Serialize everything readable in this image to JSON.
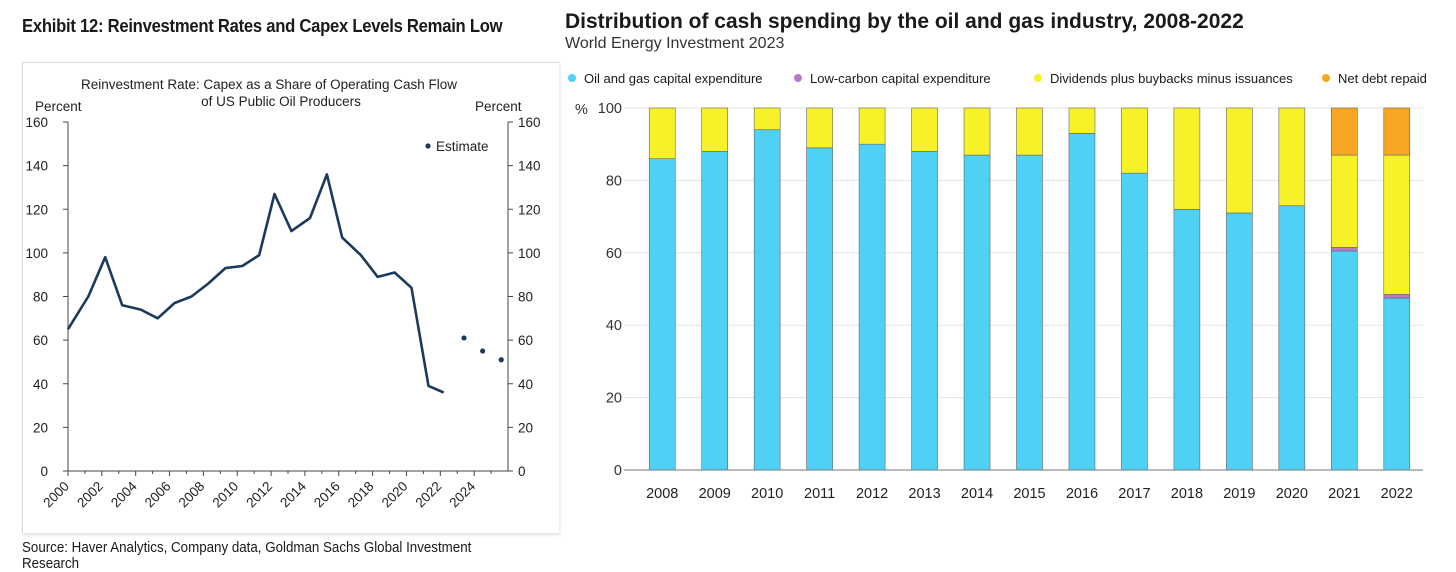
{
  "left": {
    "exhibit_title": "Exhibit 12: Reinvestment Rates and Capex Levels Remain Low",
    "source": "Source: Haver Analytics, Company data, Goldman Sachs Global Investment Research"
  },
  "right": {
    "title": "Distribution of cash spending by the oil and gas industry, 2008-2022",
    "subtitle": "World Energy Investment 2023"
  },
  "colors": {
    "line": "#1b3a5c",
    "capex": "#4fd0f5",
    "low_carbon": "#b57bc7",
    "dividends": "#f7f12a",
    "net_debt": "#f6a623"
  },
  "chart_data": [
    {
      "type": "line",
      "title": "Reinvestment Rate: Capex as a Share of Operating Cash Flow",
      "subtitle": "of US Public Oil Producers",
      "ylabel_left": "Percent",
      "ylabel_right": "Percent",
      "ylim": [
        0,
        160
      ],
      "yticks": [
        0,
        20,
        40,
        60,
        80,
        100,
        120,
        140,
        160
      ],
      "xlim": [
        2000,
        2026
      ],
      "xticks": [
        "2000",
        "2002",
        "2004",
        "2006",
        "2008",
        "2010",
        "2012",
        "2014",
        "2016",
        "2018",
        "2020",
        "2022",
        "2024"
      ],
      "grid": false,
      "legend_position": "top-right",
      "series": [
        {
          "name": "",
          "style": "line",
          "x": [
            2000,
            2001.2,
            2002.2,
            2003.2,
            2004.3,
            2005.3,
            2006.3,
            2007.3,
            2008.3,
            2009.3,
            2010.3,
            2011.3,
            2012.2,
            2013.2,
            2014.3,
            2015.3,
            2016.2,
            2017.3,
            2018.3,
            2019.3,
            2020.3,
            2021.3,
            2022.2
          ],
          "y": [
            65,
            80,
            98,
            76,
            74,
            70,
            77,
            80,
            86,
            93,
            94,
            99,
            127,
            110,
            116,
            136,
            107,
            99,
            89,
            91,
            84,
            39,
            36
          ]
        },
        {
          "name": "Estimate",
          "style": "dots",
          "x": [
            2023.4,
            2024.5,
            2025.6
          ],
          "y": [
            61,
            55,
            51
          ]
        }
      ]
    },
    {
      "type": "bar",
      "stacked": true,
      "ylabel": "%",
      "ylim": [
        0,
        100
      ],
      "yticks": [
        0,
        20,
        40,
        60,
        80,
        100
      ],
      "grid": true,
      "legend_position": "top",
      "categories": [
        "2008",
        "2009",
        "2010",
        "2011",
        "2012",
        "2013",
        "2014",
        "2015",
        "2016",
        "2017",
        "2018",
        "2019",
        "2020",
        "2021",
        "2022"
      ],
      "series": [
        {
          "name": "Oil and gas capital expenditure",
          "color_key": "capex",
          "values": [
            86,
            88,
            94,
            89,
            90,
            88,
            87,
            87,
            93,
            82,
            72,
            71,
            73,
            60.5,
            47.5
          ]
        },
        {
          "name": "Low-carbon capital expenditure",
          "color_key": "low_carbon",
          "values": [
            0,
            0,
            0,
            0,
            0,
            0,
            0,
            0,
            0,
            0,
            0,
            0,
            0,
            1,
            1
          ]
        },
        {
          "name": "Dividends plus buybacks minus issuances",
          "color_key": "dividends",
          "values": [
            14,
            12,
            6,
            11,
            10,
            12,
            13,
            13,
            7,
            18,
            28,
            29,
            27,
            25.5,
            38.5
          ]
        },
        {
          "name": "Net debt repaid",
          "color_key": "net_debt",
          "values": [
            0,
            0,
            0,
            0,
            0,
            0,
            0,
            0,
            0,
            0,
            0,
            0,
            0,
            13,
            13
          ]
        }
      ]
    }
  ]
}
